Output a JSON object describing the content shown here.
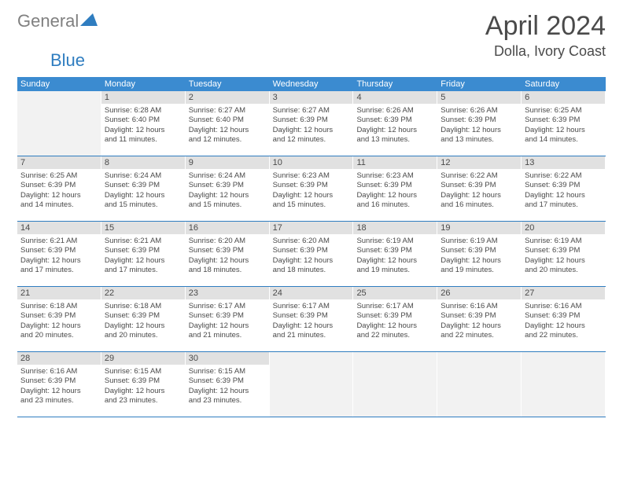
{
  "logo": {
    "general": "General",
    "blue": "Blue"
  },
  "title": "April 2024",
  "location": "Dolla, Ivory Coast",
  "colors": {
    "header_bg": "#3b8bd0",
    "header_text": "#ffffff",
    "daynum_bg": "#e1e1e1",
    "week_border": "#2f7dc0",
    "empty_bg": "#f2f2f2",
    "text": "#4a4a4a",
    "logo_gray": "#808080",
    "logo_blue": "#2f7dc0"
  },
  "day_headers": [
    "Sunday",
    "Monday",
    "Tuesday",
    "Wednesday",
    "Thursday",
    "Friday",
    "Saturday"
  ],
  "weeks": [
    [
      {
        "n": "",
        "sr": "",
        "ss": "",
        "dl1": "",
        "dl2": ""
      },
      {
        "n": "1",
        "sr": "Sunrise: 6:28 AM",
        "ss": "Sunset: 6:40 PM",
        "dl1": "Daylight: 12 hours",
        "dl2": "and 11 minutes."
      },
      {
        "n": "2",
        "sr": "Sunrise: 6:27 AM",
        "ss": "Sunset: 6:40 PM",
        "dl1": "Daylight: 12 hours",
        "dl2": "and 12 minutes."
      },
      {
        "n": "3",
        "sr": "Sunrise: 6:27 AM",
        "ss": "Sunset: 6:39 PM",
        "dl1": "Daylight: 12 hours",
        "dl2": "and 12 minutes."
      },
      {
        "n": "4",
        "sr": "Sunrise: 6:26 AM",
        "ss": "Sunset: 6:39 PM",
        "dl1": "Daylight: 12 hours",
        "dl2": "and 13 minutes."
      },
      {
        "n": "5",
        "sr": "Sunrise: 6:26 AM",
        "ss": "Sunset: 6:39 PM",
        "dl1": "Daylight: 12 hours",
        "dl2": "and 13 minutes."
      },
      {
        "n": "6",
        "sr": "Sunrise: 6:25 AM",
        "ss": "Sunset: 6:39 PM",
        "dl1": "Daylight: 12 hours",
        "dl2": "and 14 minutes."
      }
    ],
    [
      {
        "n": "7",
        "sr": "Sunrise: 6:25 AM",
        "ss": "Sunset: 6:39 PM",
        "dl1": "Daylight: 12 hours",
        "dl2": "and 14 minutes."
      },
      {
        "n": "8",
        "sr": "Sunrise: 6:24 AM",
        "ss": "Sunset: 6:39 PM",
        "dl1": "Daylight: 12 hours",
        "dl2": "and 15 minutes."
      },
      {
        "n": "9",
        "sr": "Sunrise: 6:24 AM",
        "ss": "Sunset: 6:39 PM",
        "dl1": "Daylight: 12 hours",
        "dl2": "and 15 minutes."
      },
      {
        "n": "10",
        "sr": "Sunrise: 6:23 AM",
        "ss": "Sunset: 6:39 PM",
        "dl1": "Daylight: 12 hours",
        "dl2": "and 15 minutes."
      },
      {
        "n": "11",
        "sr": "Sunrise: 6:23 AM",
        "ss": "Sunset: 6:39 PM",
        "dl1": "Daylight: 12 hours",
        "dl2": "and 16 minutes."
      },
      {
        "n": "12",
        "sr": "Sunrise: 6:22 AM",
        "ss": "Sunset: 6:39 PM",
        "dl1": "Daylight: 12 hours",
        "dl2": "and 16 minutes."
      },
      {
        "n": "13",
        "sr": "Sunrise: 6:22 AM",
        "ss": "Sunset: 6:39 PM",
        "dl1": "Daylight: 12 hours",
        "dl2": "and 17 minutes."
      }
    ],
    [
      {
        "n": "14",
        "sr": "Sunrise: 6:21 AM",
        "ss": "Sunset: 6:39 PM",
        "dl1": "Daylight: 12 hours",
        "dl2": "and 17 minutes."
      },
      {
        "n": "15",
        "sr": "Sunrise: 6:21 AM",
        "ss": "Sunset: 6:39 PM",
        "dl1": "Daylight: 12 hours",
        "dl2": "and 17 minutes."
      },
      {
        "n": "16",
        "sr": "Sunrise: 6:20 AM",
        "ss": "Sunset: 6:39 PM",
        "dl1": "Daylight: 12 hours",
        "dl2": "and 18 minutes."
      },
      {
        "n": "17",
        "sr": "Sunrise: 6:20 AM",
        "ss": "Sunset: 6:39 PM",
        "dl1": "Daylight: 12 hours",
        "dl2": "and 18 minutes."
      },
      {
        "n": "18",
        "sr": "Sunrise: 6:19 AM",
        "ss": "Sunset: 6:39 PM",
        "dl1": "Daylight: 12 hours",
        "dl2": "and 19 minutes."
      },
      {
        "n": "19",
        "sr": "Sunrise: 6:19 AM",
        "ss": "Sunset: 6:39 PM",
        "dl1": "Daylight: 12 hours",
        "dl2": "and 19 minutes."
      },
      {
        "n": "20",
        "sr": "Sunrise: 6:19 AM",
        "ss": "Sunset: 6:39 PM",
        "dl1": "Daylight: 12 hours",
        "dl2": "and 20 minutes."
      }
    ],
    [
      {
        "n": "21",
        "sr": "Sunrise: 6:18 AM",
        "ss": "Sunset: 6:39 PM",
        "dl1": "Daylight: 12 hours",
        "dl2": "and 20 minutes."
      },
      {
        "n": "22",
        "sr": "Sunrise: 6:18 AM",
        "ss": "Sunset: 6:39 PM",
        "dl1": "Daylight: 12 hours",
        "dl2": "and 20 minutes."
      },
      {
        "n": "23",
        "sr": "Sunrise: 6:17 AM",
        "ss": "Sunset: 6:39 PM",
        "dl1": "Daylight: 12 hours",
        "dl2": "and 21 minutes."
      },
      {
        "n": "24",
        "sr": "Sunrise: 6:17 AM",
        "ss": "Sunset: 6:39 PM",
        "dl1": "Daylight: 12 hours",
        "dl2": "and 21 minutes."
      },
      {
        "n": "25",
        "sr": "Sunrise: 6:17 AM",
        "ss": "Sunset: 6:39 PM",
        "dl1": "Daylight: 12 hours",
        "dl2": "and 22 minutes."
      },
      {
        "n": "26",
        "sr": "Sunrise: 6:16 AM",
        "ss": "Sunset: 6:39 PM",
        "dl1": "Daylight: 12 hours",
        "dl2": "and 22 minutes."
      },
      {
        "n": "27",
        "sr": "Sunrise: 6:16 AM",
        "ss": "Sunset: 6:39 PM",
        "dl1": "Daylight: 12 hours",
        "dl2": "and 22 minutes."
      }
    ],
    [
      {
        "n": "28",
        "sr": "Sunrise: 6:16 AM",
        "ss": "Sunset: 6:39 PM",
        "dl1": "Daylight: 12 hours",
        "dl2": "and 23 minutes."
      },
      {
        "n": "29",
        "sr": "Sunrise: 6:15 AM",
        "ss": "Sunset: 6:39 PM",
        "dl1": "Daylight: 12 hours",
        "dl2": "and 23 minutes."
      },
      {
        "n": "30",
        "sr": "Sunrise: 6:15 AM",
        "ss": "Sunset: 6:39 PM",
        "dl1": "Daylight: 12 hours",
        "dl2": "and 23 minutes."
      },
      {
        "n": "",
        "sr": "",
        "ss": "",
        "dl1": "",
        "dl2": ""
      },
      {
        "n": "",
        "sr": "",
        "ss": "",
        "dl1": "",
        "dl2": ""
      },
      {
        "n": "",
        "sr": "",
        "ss": "",
        "dl1": "",
        "dl2": ""
      },
      {
        "n": "",
        "sr": "",
        "ss": "",
        "dl1": "",
        "dl2": ""
      }
    ]
  ]
}
